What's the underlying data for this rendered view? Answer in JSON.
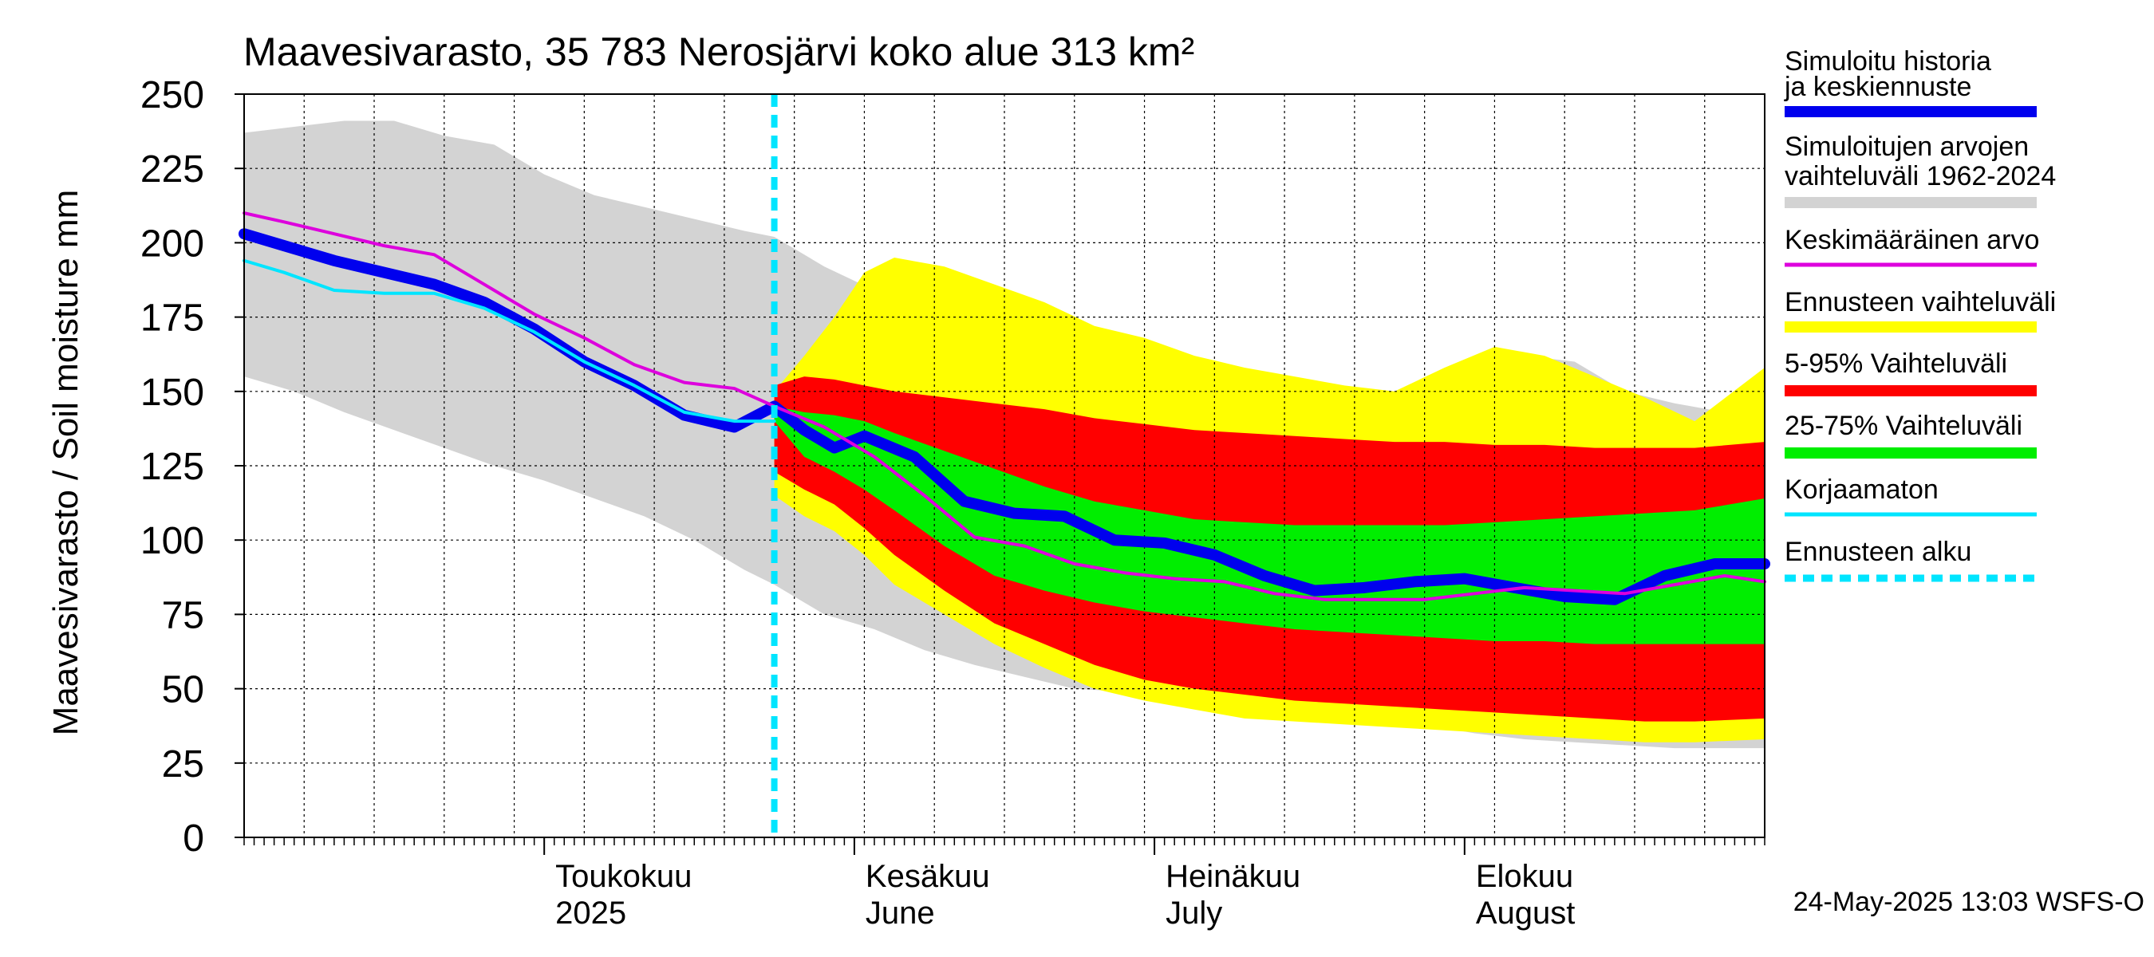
{
  "chart_data": {
    "type": "area",
    "title": "Maavesivarasto, 35 783 Nerosjärvi koko alue 313 km²",
    "ylabel": "Maavesivarasto / Soil moisture   mm",
    "ylim": [
      0,
      250
    ],
    "yticks": [
      0,
      25,
      50,
      75,
      100,
      125,
      150,
      175,
      200,
      225,
      250
    ],
    "xlim": [
      "2025-04-01",
      "2025-08-31"
    ],
    "forecast_start": "2025-05-24",
    "month_labels": [
      {
        "date": "2025-05-01",
        "line1": "Toukokuu",
        "line2": "2025"
      },
      {
        "date": "2025-06-01",
        "line1": "Kesäkuu",
        "line2": "June"
      },
      {
        "date": "2025-07-01",
        "line1": "Heinäkuu",
        "line2": "July"
      },
      {
        "date": "2025-08-01",
        "line1": "Elokuu",
        "line2": "August"
      }
    ],
    "footer": "24-May-2025 13:03 WSFS-O",
    "colors": {
      "history_range": "#d3d3d3",
      "forecast_range": "#ffff00",
      "p5_95": "#ff0000",
      "p25_75": "#00ee00",
      "simulated": "#0000ee",
      "mean": "#dd00dd",
      "uncorrected": "#00e5ff",
      "forecast_start": "#00e5ff"
    },
    "legend": [
      {
        "key": "simulated",
        "label": "Simuloitu historia ja keskiennuste",
        "style": "thick"
      },
      {
        "key": "history_range",
        "label": "Simuloitujen arvojen vaihteluväli 1962-2024",
        "style": "band"
      },
      {
        "key": "mean",
        "label": "Keskimääräinen arvo",
        "style": "line"
      },
      {
        "key": "forecast_range",
        "label": "Ennusteen vaihteluväli",
        "style": "band"
      },
      {
        "key": "p5_95",
        "label": "5-95% Vaihteluväli",
        "style": "band"
      },
      {
        "key": "p25_75",
        "label": "25-75% Vaihteluväli",
        "style": "band"
      },
      {
        "key": "uncorrected",
        "label": "Korjaamaton",
        "style": "line"
      },
      {
        "key": "forecast_start",
        "label": "Ennusteen alku",
        "style": "dashed"
      }
    ],
    "series": {
      "history_range": {
        "x": [
          "2025-04-01",
          "2025-04-06",
          "2025-04-11",
          "2025-04-16",
          "2025-04-21",
          "2025-04-26",
          "2025-05-01",
          "2025-05-06",
          "2025-05-11",
          "2025-05-16",
          "2025-05-21",
          "2025-05-24",
          "2025-05-29",
          "2025-06-03",
          "2025-06-08",
          "2025-06-13",
          "2025-06-18",
          "2025-06-23",
          "2025-06-28",
          "2025-07-03",
          "2025-07-08",
          "2025-07-13",
          "2025-07-18",
          "2025-07-23",
          "2025-07-28",
          "2025-08-02",
          "2025-08-07",
          "2025-08-12",
          "2025-08-17",
          "2025-08-22",
          "2025-08-27",
          "2025-08-31"
        ],
        "low": [
          155,
          150,
          143,
          137,
          131,
          125,
          120,
          114,
          108,
          100,
          90,
          85,
          75,
          70,
          63,
          58,
          54,
          50,
          49,
          48,
          46,
          44,
          42,
          40,
          38,
          35,
          33,
          32,
          31,
          30,
          30,
          30
        ],
        "high": [
          237,
          239,
          241,
          241,
          236,
          233,
          223,
          216,
          212,
          208,
          204,
          202,
          192,
          184,
          174,
          168,
          166,
          162,
          159,
          156,
          152,
          150,
          147,
          145,
          143,
          150,
          162,
          160,
          150,
          146,
          143,
          150
        ]
      },
      "forecast_range": {
        "x": [
          "2025-05-24",
          "2025-05-27",
          "2025-05-30",
          "2025-06-02",
          "2025-06-05",
          "2025-06-10",
          "2025-06-15",
          "2025-06-20",
          "2025-06-25",
          "2025-06-30",
          "2025-07-05",
          "2025-07-10",
          "2025-07-15",
          "2025-07-20",
          "2025-07-25",
          "2025-07-30",
          "2025-08-04",
          "2025-08-09",
          "2025-08-14",
          "2025-08-19",
          "2025-08-24",
          "2025-08-31"
        ],
        "low": [
          115,
          108,
          103,
          95,
          85,
          75,
          65,
          57,
          50,
          46,
          43,
          40,
          39,
          38,
          37,
          36,
          35,
          34,
          33,
          32,
          32,
          33
        ],
        "high": [
          150,
          162,
          175,
          190,
          195,
          192,
          186,
          180,
          172,
          168,
          162,
          158,
          155,
          152,
          150,
          158,
          165,
          162,
          155,
          148,
          140,
          158
        ]
      },
      "p5_95": {
        "x": [
          "2025-05-24",
          "2025-05-27",
          "2025-05-30",
          "2025-06-02",
          "2025-06-05",
          "2025-06-10",
          "2025-06-15",
          "2025-06-20",
          "2025-06-25",
          "2025-06-30",
          "2025-07-05",
          "2025-07-10",
          "2025-07-15",
          "2025-07-20",
          "2025-07-25",
          "2025-07-30",
          "2025-08-04",
          "2025-08-09",
          "2025-08-14",
          "2025-08-19",
          "2025-08-24",
          "2025-08-31"
        ],
        "low": [
          123,
          117,
          112,
          104,
          95,
          83,
          72,
          65,
          58,
          53,
          50,
          48,
          46,
          45,
          44,
          43,
          42,
          41,
          40,
          39,
          39,
          40
        ],
        "high": [
          152,
          155,
          154,
          152,
          150,
          148,
          146,
          144,
          141,
          139,
          137,
          136,
          135,
          134,
          133,
          133,
          132,
          132,
          131,
          131,
          131,
          133
        ]
      },
      "p25_75": {
        "x": [
          "2025-05-24",
          "2025-05-27",
          "2025-05-30",
          "2025-06-02",
          "2025-06-05",
          "2025-06-10",
          "2025-06-15",
          "2025-06-20",
          "2025-06-25",
          "2025-06-30",
          "2025-07-05",
          "2025-07-10",
          "2025-07-15",
          "2025-07-20",
          "2025-07-25",
          "2025-07-30",
          "2025-08-04",
          "2025-08-09",
          "2025-08-14",
          "2025-08-19",
          "2025-08-24",
          "2025-08-31"
        ],
        "low": [
          140,
          128,
          123,
          117,
          110,
          98,
          88,
          83,
          79,
          76,
          74,
          72,
          70,
          69,
          68,
          67,
          66,
          66,
          65,
          65,
          65,
          65
        ],
        "high": [
          145,
          143,
          142,
          140,
          136,
          130,
          124,
          118,
          113,
          110,
          107,
          106,
          105,
          105,
          105,
          105,
          106,
          107,
          108,
          109,
          110,
          114
        ]
      },
      "simulated": {
        "x": [
          "2025-04-01",
          "2025-04-05",
          "2025-04-10",
          "2025-04-15",
          "2025-04-20",
          "2025-04-25",
          "2025-04-30",
          "2025-05-05",
          "2025-05-10",
          "2025-05-15",
          "2025-05-20",
          "2025-05-24",
          "2025-05-27",
          "2025-05-30",
          "2025-06-02",
          "2025-06-07",
          "2025-06-12",
          "2025-06-17",
          "2025-06-22",
          "2025-06-27",
          "2025-07-02",
          "2025-07-07",
          "2025-07-12",
          "2025-07-17",
          "2025-07-22",
          "2025-07-27",
          "2025-08-01",
          "2025-08-06",
          "2025-08-11",
          "2025-08-16",
          "2025-08-21",
          "2025-08-26",
          "2025-08-31"
        ],
        "y": [
          203,
          199,
          194,
          190,
          186,
          180,
          171,
          160,
          152,
          142,
          138,
          145,
          137,
          131,
          135,
          128,
          113,
          109,
          108,
          100,
          99,
          95,
          88,
          83,
          84,
          86,
          87,
          84,
          81,
          80,
          88,
          92,
          92
        ]
      },
      "mean": {
        "x": [
          "2025-04-01",
          "2025-04-05",
          "2025-04-10",
          "2025-04-15",
          "2025-04-20",
          "2025-04-25",
          "2025-04-30",
          "2025-05-05",
          "2025-05-10",
          "2025-05-15",
          "2025-05-20",
          "2025-05-24",
          "2025-05-29",
          "2025-06-03",
          "2025-06-08",
          "2025-06-13",
          "2025-06-18",
          "2025-06-23",
          "2025-06-28",
          "2025-07-03",
          "2025-07-08",
          "2025-07-13",
          "2025-07-18",
          "2025-07-23",
          "2025-07-28",
          "2025-08-02",
          "2025-08-07",
          "2025-08-12",
          "2025-08-17",
          "2025-08-22",
          "2025-08-27",
          "2025-08-31"
        ],
        "y": [
          210,
          207,
          203,
          199,
          196,
          186,
          176,
          168,
          159,
          153,
          151,
          145,
          138,
          128,
          115,
          101,
          98,
          92,
          89,
          87,
          86,
          82,
          80,
          80,
          80,
          82,
          84,
          83,
          82,
          85,
          88,
          86
        ]
      },
      "uncorrected": {
        "x": [
          "2025-04-01",
          "2025-04-05",
          "2025-04-10",
          "2025-04-15",
          "2025-04-20",
          "2025-04-25",
          "2025-04-30",
          "2025-05-05",
          "2025-05-10",
          "2025-05-15",
          "2025-05-20",
          "2025-05-24"
        ],
        "y": [
          194,
          190,
          184,
          183,
          183,
          178,
          170,
          160,
          152,
          143,
          140,
          140
        ]
      }
    }
  }
}
